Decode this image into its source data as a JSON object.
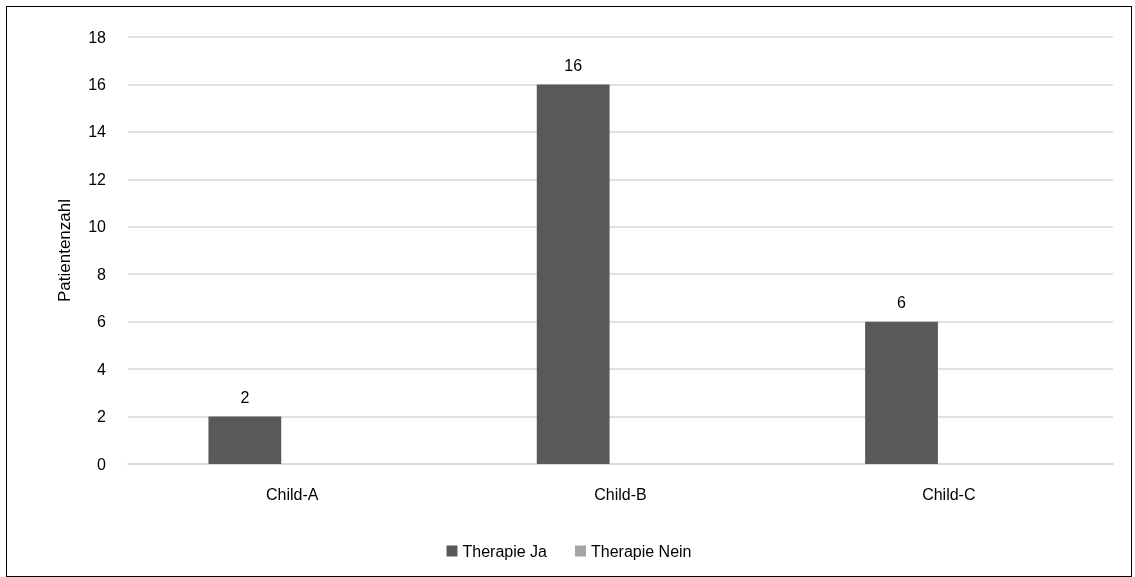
{
  "chart_data": {
    "type": "bar",
    "ylabel": "Patientenzahl",
    "categories": [
      "Child-A",
      "Child-B",
      "Child-C"
    ],
    "series": [
      {
        "name": "Therapie Ja",
        "color": "#595959",
        "values": [
          2,
          16,
          6
        ]
      },
      {
        "name": "Therapie Nein",
        "color": "#a5a5a5",
        "values": [
          null,
          null,
          null
        ]
      }
    ],
    "ylim": [
      0,
      18
    ],
    "yticks": [
      0,
      2,
      4,
      6,
      8,
      10,
      12,
      14,
      16,
      18
    ],
    "grid": "y",
    "legend": "bottom",
    "data_labels": true
  }
}
